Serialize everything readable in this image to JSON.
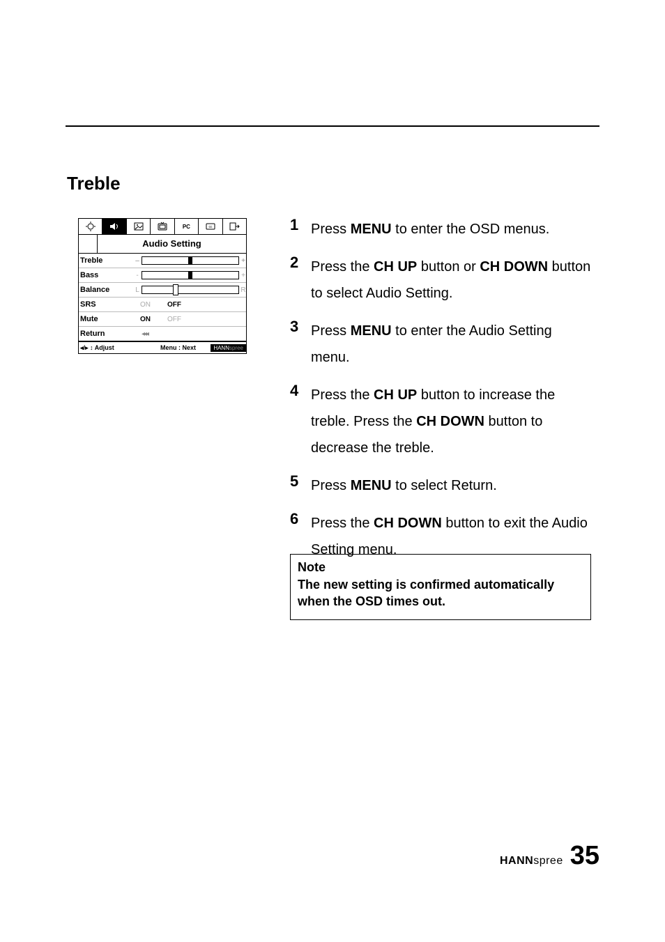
{
  "heading": "Treble",
  "osd": {
    "title": "Audio Setting",
    "tabs": [
      {
        "name": "brightness-icon",
        "type": "brightness"
      },
      {
        "name": "audio-icon",
        "type": "audio",
        "active": true
      },
      {
        "name": "picture-icon",
        "type": "picture"
      },
      {
        "name": "tv-icon",
        "type": "tv"
      },
      {
        "name": "pc-icon",
        "type": "pc",
        "label": "PC"
      },
      {
        "name": "caption-icon",
        "type": "caption"
      },
      {
        "name": "exit-icon",
        "type": "exit"
      }
    ],
    "rows": [
      {
        "label": "Treble",
        "kind": "slider",
        "pre": "–",
        "post": "+",
        "pos": 50
      },
      {
        "label": "Bass",
        "kind": "slider",
        "pre": "-",
        "post": "+",
        "pos": 50,
        "muted_ends": true
      },
      {
        "label": "Balance",
        "kind": "slider-balance",
        "pre": "L",
        "post": "R",
        "pos": 35
      },
      {
        "label": "SRS",
        "kind": "toggle",
        "on": "ON",
        "off": "OFF",
        "value": "OFF"
      },
      {
        "label": "Mute",
        "kind": "toggle",
        "on": "ON",
        "off": "OFF",
        "value": "ON"
      },
      {
        "label": "Return",
        "kind": "return"
      }
    ],
    "footer": {
      "left": "◂/▸ ↕ Adjust",
      "mid": "Menu : Next",
      "brand_bold": "HANN",
      "brand_light": "spree"
    }
  },
  "steps": [
    {
      "n": "1",
      "parts": [
        "Press ",
        {
          "b": "MENU"
        },
        " to enter the OSD menus."
      ]
    },
    {
      "n": "2",
      "parts": [
        "Press the ",
        {
          "b": "CH UP"
        },
        " button or ",
        {
          "b": "CH DOWN"
        },
        " button to select Audio Setting."
      ]
    },
    {
      "n": "3",
      "parts": [
        "Press ",
        {
          "b": "MENU"
        },
        " to enter the Audio Setting menu."
      ]
    },
    {
      "n": "4",
      "parts": [
        "Press the ",
        {
          "b": "CH UP"
        },
        " button to increase the treble. Press the ",
        {
          "b": "CH DOWN"
        },
        " button to decrease the treble."
      ]
    },
    {
      "n": "5",
      "parts": [
        "Press ",
        {
          "b": "MENU"
        },
        " to select Return."
      ]
    },
    {
      "n": "6",
      "parts": [
        "Press the ",
        {
          "b": "CH DOWN"
        },
        " button to exit the Audio Setting menu."
      ]
    }
  ],
  "note": {
    "title": "Note",
    "text": "The new setting is confirmed automatically when the OSD times out."
  },
  "footer_brand_bold": "HANN",
  "footer_brand_light": "spree",
  "page_number": "35"
}
